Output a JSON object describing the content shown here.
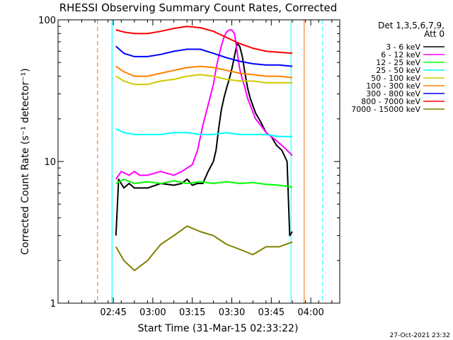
{
  "chart_data": {
    "type": "line",
    "title": "RHESSI Observing Summary Count Rates, Corrected",
    "xlabel": "Start Time (31-Mar-15 02:33:22)",
    "ylabel": "Corrected Count Rate (s⁻¹ detector⁻¹)",
    "x_tick_labels": [
      "02:45",
      "03:00",
      "03:15",
      "03:30",
      "03:45",
      "04:00"
    ],
    "x_ticks_min": [
      12.0,
      27.0,
      42.0,
      57.0,
      72.0,
      87.0
    ],
    "xlim_min": [
      -9.0,
      98.0
    ],
    "y_scale": "log",
    "ylim": [
      1,
      100
    ],
    "y_tick_labels": [
      "1",
      "10",
      "100"
    ],
    "y_tick_values": [
      1,
      10,
      100
    ],
    "legend": {
      "header_lines": [
        "Det 1,3,5,6,7,9,",
        "Att 0"
      ],
      "placement": "right"
    },
    "timestamp": "27-Oct-2021 23:32",
    "vertical_markers_min": [
      {
        "x": 6.0,
        "color": "#ff6600",
        "style": "dashed"
      },
      {
        "x": 11.5,
        "color": "#00ffff",
        "style": "dashed"
      },
      {
        "x": 11.5,
        "color": "#00ffff",
        "style": "solid"
      },
      {
        "x": 79.5,
        "color": "#00ffff",
        "style": "solid"
      },
      {
        "x": 84.5,
        "color": "#ff6600",
        "style": "solid"
      },
      {
        "x": 91.5,
        "color": "#00ffff",
        "style": "dashed"
      }
    ],
    "series": [
      {
        "name": "3 - 6 keV",
        "color": "#000000",
        "x": [
          13,
          14,
          16,
          18,
          20,
          25,
          30,
          35,
          38,
          40,
          42,
          44,
          46,
          48,
          50,
          51,
          52,
          53,
          54,
          55,
          56,
          57,
          58,
          59,
          60,
          61,
          62,
          63,
          64,
          66,
          68,
          70,
          72,
          74,
          76,
          78,
          79,
          80
        ],
        "y": [
          3.0,
          7.5,
          6.5,
          7.0,
          6.5,
          6.5,
          7.0,
          6.8,
          7.0,
          7.5,
          6.8,
          7.0,
          7.0,
          8.5,
          10,
          12,
          17,
          23,
          28,
          33,
          38,
          45,
          55,
          68,
          65,
          55,
          42,
          33,
          28,
          22,
          19,
          16,
          15,
          13,
          12,
          10,
          3.0,
          3.2
        ]
      },
      {
        "name": "6 - 12 keV",
        "color": "#ff00ff",
        "x": [
          13,
          15,
          18,
          20,
          22,
          25,
          30,
          35,
          38,
          40,
          42,
          44,
          46,
          48,
          50,
          51,
          52,
          53,
          54,
          55,
          56,
          57,
          58,
          59,
          60,
          61,
          62,
          63,
          64,
          66,
          68,
          70,
          72,
          74,
          76,
          78,
          80
        ],
        "y": [
          7.5,
          8.5,
          8.0,
          8.5,
          8.0,
          8.0,
          8.5,
          8.0,
          8.5,
          9.0,
          9.5,
          12,
          18,
          25,
          35,
          45,
          55,
          65,
          75,
          82,
          85,
          85,
          80,
          60,
          45,
          38,
          33,
          28,
          25,
          20,
          18,
          16,
          15,
          14,
          13,
          12,
          11
        ]
      },
      {
        "name": "12 - 25 keV",
        "color": "#00ff00",
        "x": [
          13,
          16,
          20,
          25,
          30,
          35,
          40,
          45,
          50,
          55,
          60,
          65,
          70,
          75,
          80
        ],
        "y": [
          7.0,
          7.5,
          7.0,
          7.2,
          7.0,
          7.3,
          7.0,
          7.2,
          7.0,
          7.2,
          7.0,
          7.1,
          6.9,
          6.8,
          6.6
        ]
      },
      {
        "name": "25 - 50 keV",
        "color": "#00ffff",
        "x": [
          13,
          16,
          20,
          25,
          30,
          35,
          40,
          45,
          50,
          55,
          60,
          65,
          70,
          75,
          80
        ],
        "y": [
          17,
          16,
          15.5,
          15.5,
          15.5,
          16,
          16,
          15.5,
          15.5,
          16,
          15.5,
          15.5,
          15.5,
          15,
          15
        ]
      },
      {
        "name": "50 - 100 keV",
        "color": "#cccc00",
        "x": [
          13,
          16,
          20,
          25,
          30,
          35,
          40,
          45,
          50,
          55,
          60,
          65,
          70,
          75,
          80
        ],
        "y": [
          40,
          37,
          35,
          35,
          37,
          38,
          40,
          41,
          40,
          38,
          37,
          37,
          36,
          36,
          36
        ]
      },
      {
        "name": "100 - 300 keV",
        "color": "#ff8000",
        "x": [
          13,
          16,
          20,
          25,
          30,
          35,
          40,
          45,
          50,
          55,
          60,
          65,
          70,
          75,
          80
        ],
        "y": [
          47,
          43,
          40,
          40,
          42,
          44,
          46,
          47,
          46,
          44,
          42,
          41,
          40,
          40,
          39
        ]
      },
      {
        "name": "300 - 800 keV",
        "color": "#0000ff",
        "x": [
          13,
          16,
          20,
          25,
          30,
          35,
          40,
          45,
          50,
          55,
          60,
          65,
          70,
          75,
          80
        ],
        "y": [
          65,
          58,
          55,
          55,
          57,
          60,
          62,
          62,
          58,
          54,
          51,
          49,
          48,
          48,
          47
        ]
      },
      {
        "name": "800 - 7000 keV",
        "color": "#ff0000",
        "x": [
          13,
          16,
          20,
          25,
          30,
          35,
          40,
          45,
          50,
          55,
          60,
          65,
          70,
          75,
          80
        ],
        "y": [
          85,
          82,
          80,
          80,
          83,
          87,
          90,
          88,
          83,
          75,
          68,
          63,
          60,
          59,
          58
        ]
      },
      {
        "name": "7000 - 15000 keV",
        "color": "#808000",
        "x": [
          13,
          16,
          20,
          25,
          30,
          35,
          40,
          45,
          50,
          55,
          60,
          65,
          70,
          75,
          80
        ],
        "y": [
          2.5,
          2.0,
          1.7,
          2.0,
          2.6,
          3.0,
          3.5,
          3.2,
          3.0,
          2.6,
          2.4,
          2.2,
          2.5,
          2.5,
          2.7
        ]
      }
    ]
  }
}
